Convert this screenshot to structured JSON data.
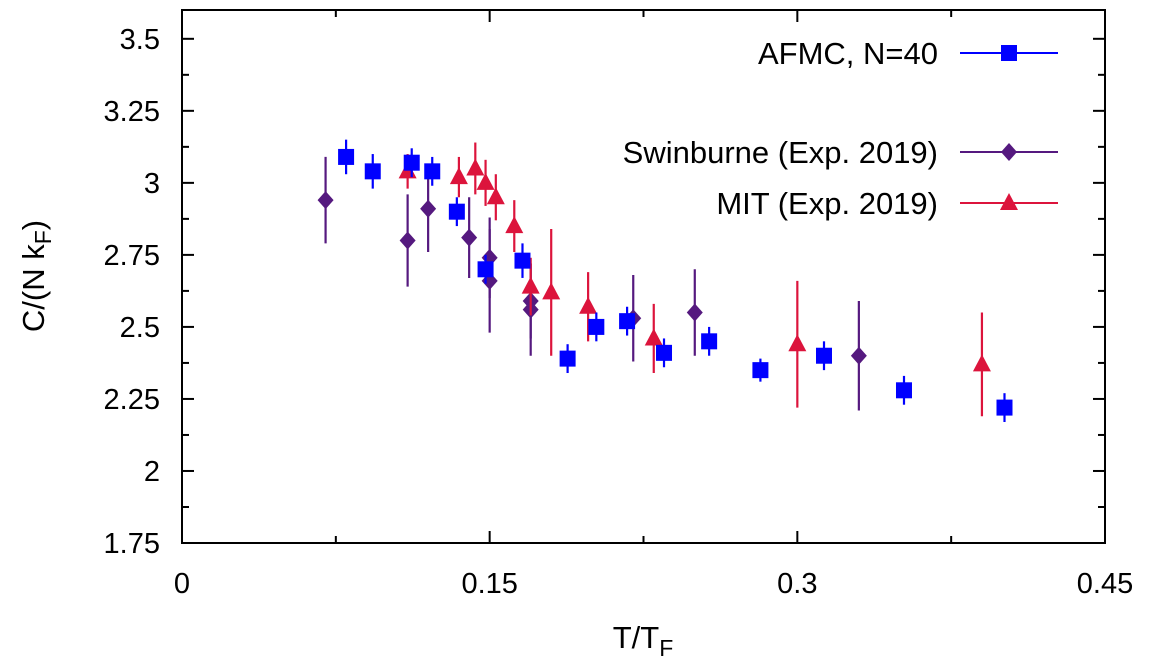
{
  "chart_data": {
    "type": "scatter",
    "xlabel": {
      "main": "T/T",
      "sub": "F"
    },
    "ylabel": {
      "main": "C/(N k",
      "sub": "F",
      "close": ")"
    },
    "xlim": [
      0,
      0.45
    ],
    "ylim": [
      1.75,
      3.6
    ],
    "xticks": [
      0,
      0.15,
      0.3,
      0.45
    ],
    "xtick_labels": [
      "0",
      "0.15",
      "0.3",
      "0.45"
    ],
    "yticks": [
      1.75,
      2,
      2.25,
      2.5,
      2.75,
      3,
      3.25,
      3.5
    ],
    "ytick_labels": [
      "1.75",
      "2",
      "2.25",
      "2.5",
      "2.75",
      "3",
      "3.25",
      "3.5"
    ],
    "grid": false,
    "legend_position": "top-right",
    "series": [
      {
        "name": "AFMC, N=40",
        "marker": "square",
        "color": "#0000ff",
        "points": [
          {
            "x": 0.08,
            "y": 3.09,
            "err": 0.06
          },
          {
            "x": 0.093,
            "y": 3.04,
            "err": 0.06
          },
          {
            "x": 0.112,
            "y": 3.07,
            "err": 0.05
          },
          {
            "x": 0.122,
            "y": 3.04,
            "err": 0.05
          },
          {
            "x": 0.134,
            "y": 2.9,
            "err": 0.05
          },
          {
            "x": 0.148,
            "y": 2.7,
            "err": 0.05
          },
          {
            "x": 0.166,
            "y": 2.73,
            "err": 0.06
          },
          {
            "x": 0.188,
            "y": 2.39,
            "err": 0.05
          },
          {
            "x": 0.202,
            "y": 2.5,
            "err": 0.05
          },
          {
            "x": 0.217,
            "y": 2.52,
            "err": 0.05
          },
          {
            "x": 0.235,
            "y": 2.41,
            "err": 0.05
          },
          {
            "x": 0.257,
            "y": 2.45,
            "err": 0.05
          },
          {
            "x": 0.282,
            "y": 2.35,
            "err": 0.04
          },
          {
            "x": 0.313,
            "y": 2.4,
            "err": 0.05
          },
          {
            "x": 0.352,
            "y": 2.28,
            "err": 0.05
          },
          {
            "x": 0.401,
            "y": 2.22,
            "err": 0.05
          }
        ]
      },
      {
        "name": "Swinburne (Exp. 2019)",
        "marker": "diamond",
        "color": "#55197f",
        "points": [
          {
            "x": 0.07,
            "y": 2.94,
            "err": 0.15
          },
          {
            "x": 0.11,
            "y": 2.8,
            "err": 0.16
          },
          {
            "x": 0.12,
            "y": 2.91,
            "err": 0.15
          },
          {
            "x": 0.14,
            "y": 2.81,
            "err": 0.14
          },
          {
            "x": 0.15,
            "y": 2.74,
            "err": 0.14
          },
          {
            "x": 0.15,
            "y": 2.66,
            "err": 0.18
          },
          {
            "x": 0.17,
            "y": 2.59,
            "err": 0.13
          },
          {
            "x": 0.17,
            "y": 2.56,
            "err": 0.16
          },
          {
            "x": 0.22,
            "y": 2.53,
            "err": 0.15
          },
          {
            "x": 0.25,
            "y": 2.55,
            "err": 0.15
          },
          {
            "x": 0.33,
            "y": 2.4,
            "err": 0.19
          }
        ]
      },
      {
        "name": "MIT (Exp. 2019)",
        "marker": "triangle",
        "color": "#dc143c",
        "points": [
          {
            "x": 0.11,
            "y": 3.04,
            "err": 0.06
          },
          {
            "x": 0.135,
            "y": 3.02,
            "err": 0.07
          },
          {
            "x": 0.143,
            "y": 3.05,
            "err": 0.09
          },
          {
            "x": 0.148,
            "y": 3.0,
            "err": 0.08
          },
          {
            "x": 0.153,
            "y": 2.95,
            "err": 0.08
          },
          {
            "x": 0.162,
            "y": 2.85,
            "err": 0.09
          },
          {
            "x": 0.17,
            "y": 2.64,
            "err": 0.1
          },
          {
            "x": 0.18,
            "y": 2.62,
            "err": 0.22
          },
          {
            "x": 0.198,
            "y": 2.57,
            "err": 0.12
          },
          {
            "x": 0.23,
            "y": 2.46,
            "err": 0.12
          },
          {
            "x": 0.3,
            "y": 2.44,
            "err": 0.22
          },
          {
            "x": 0.39,
            "y": 2.37,
            "err": 0.18
          }
        ]
      }
    ]
  }
}
